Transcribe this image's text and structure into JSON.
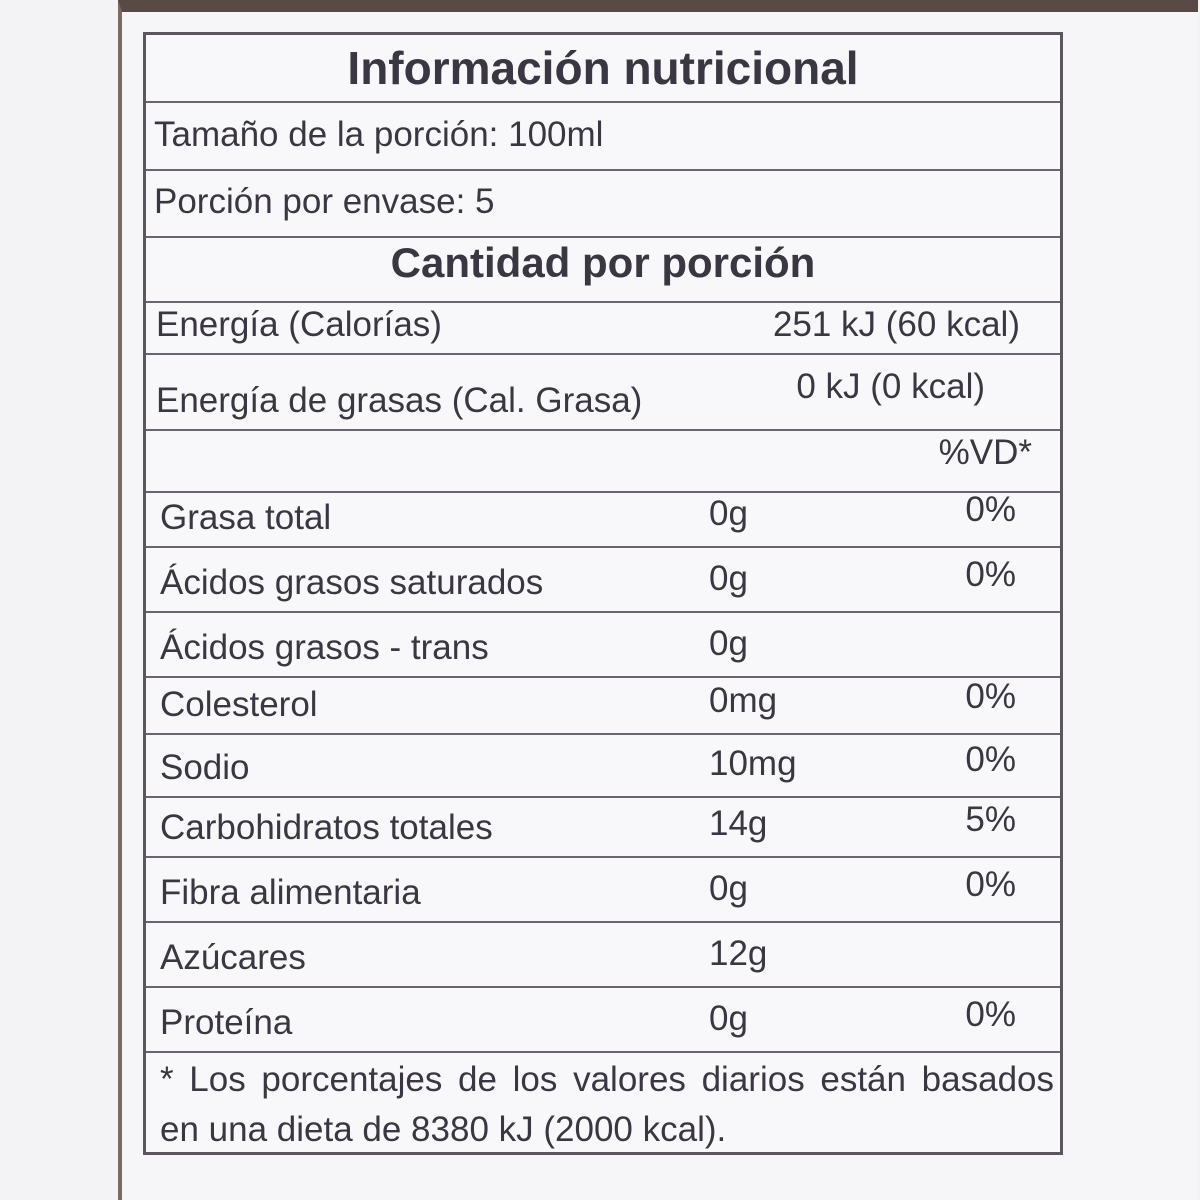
{
  "title": "Información nutricional",
  "serving_size": "Tamaño de la porción: 100ml",
  "servings": "Porción por envase: 5",
  "subtitle": "Cantidad por porción",
  "energy": [
    {
      "name": "Energía (Calorías)",
      "value": "251 kJ (60 kcal)"
    },
    {
      "name": "Energía de grasas (Cal. Grasa)",
      "value": "0 kJ (0 kcal)"
    }
  ],
  "dv_header": "%VD*",
  "nutrients": [
    {
      "name": "Grasa total",
      "amount": "0g",
      "dv": "0%"
    },
    {
      "name": "Ácidos grasos saturados",
      "amount": "0g",
      "dv": "0%"
    },
    {
      "name": "Ácidos grasos - trans",
      "amount": "0g"
    },
    {
      "name": "Colesterol",
      "amount": "0mg",
      "dv": "0%"
    },
    {
      "name": "Sodio",
      "amount": "10mg",
      "dv": "0%"
    },
    {
      "name": "Carbohidratos totales",
      "amount": "14g",
      "dv": "5%"
    },
    {
      "name": "Fibra alimentaria",
      "amount": "0g",
      "dv": "0%"
    },
    {
      "name": "Azúcares",
      "amount": "12g"
    },
    {
      "name": "Proteína",
      "amount": "0g",
      "dv": "0%"
    }
  ],
  "footnote": "* Los porcentajes de los valores diarios están basados en una dieta de 8380 kJ (2000 kcal)."
}
